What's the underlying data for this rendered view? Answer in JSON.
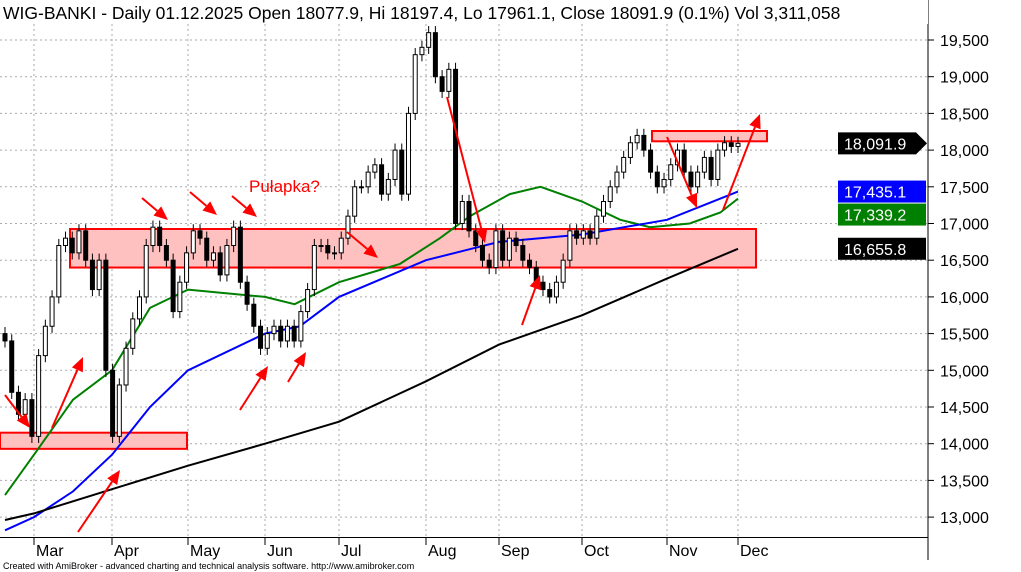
{
  "chart_data": {
    "type": "candlestick",
    "title": "WIG-BANKI - Daily 01.12.2025 Open 18077.9, Hi 18197.4, Lo 17961.1, Close 18091.9 (0.1%) Vol 3,311,058",
    "symbol": "WIG-BANKI",
    "last_bar": {
      "date": "01.12.2025",
      "open": 18077.9,
      "high": 18197.4,
      "low": 17961.1,
      "close": 18091.9,
      "change_pct": "0.1%",
      "volume": "3,311,058"
    },
    "x_ticks": [
      "Mar",
      "Apr",
      "May",
      "Jun",
      "Jul",
      "Aug",
      "Sep",
      "Oct",
      "Nov",
      "Dec"
    ],
    "y_ticks": [
      "19,500",
      "19,000",
      "18,500",
      "18,000",
      "17,500",
      "17,000",
      "16,500",
      "16,000",
      "15,500",
      "15,000",
      "14,500",
      "14,000",
      "13,500",
      "13,000"
    ],
    "y_tick_values": [
      19500,
      19000,
      18500,
      18000,
      17500,
      17000,
      16500,
      16000,
      15500,
      15000,
      14500,
      14000,
      13500,
      13000
    ],
    "ylim": [
      12700,
      19800
    ],
    "grid": true,
    "closes": [
      15400,
      14700,
      14400,
      14600,
      14100,
      15200,
      15600,
      16000,
      16700,
      16800,
      16600,
      16900,
      16500,
      16100,
      16500,
      15000,
      14100,
      14800,
      15300,
      15700,
      16000,
      16700,
      16950,
      16700,
      16500,
      15800,
      16200,
      16600,
      16900,
      16800,
      16500,
      16600,
      16300,
      16700,
      16950,
      16200,
      15900,
      15600,
      15300,
      15500,
      15600,
      15400,
      15600,
      15400,
      15800,
      16100,
      16700,
      16700,
      16600,
      16600,
      16800,
      17100,
      17500,
      17500,
      17700,
      17800,
      17400,
      17600,
      18000,
      17400,
      18500,
      19300,
      19400,
      19600,
      19000,
      18800,
      19100,
      17000,
      17300,
      16900,
      16700,
      16500,
      16400,
      16900,
      16500,
      16800,
      16700,
      16500,
      16400,
      16200,
      16100,
      16000,
      16200,
      16500,
      16900,
      16800,
      16900,
      16800,
      17100,
      17300,
      17500,
      17700,
      17900,
      18100,
      18200,
      18000,
      17700,
      17500,
      17600,
      17800,
      18000,
      17700,
      17500,
      17700,
      17900,
      17600,
      18000,
      18100,
      18050,
      18091.9
    ],
    "moving_averages": [
      {
        "color": "#008000",
        "last": "17,339.2",
        "points": [
          [
            2.63,
            13300
          ],
          [
            3.0,
            13850
          ],
          [
            3.5,
            14600
          ],
          [
            4.0,
            15000
          ],
          [
            4.5,
            15850
          ],
          [
            5.0,
            16100
          ],
          [
            6.0,
            16000
          ],
          [
            6.4,
            15900
          ],
          [
            7.0,
            16200
          ],
          [
            7.7,
            16450
          ],
          [
            8.19,
            16800
          ],
          [
            8.6,
            17100
          ],
          [
            9.13,
            17400
          ],
          [
            9.5,
            17500
          ],
          [
            10.0,
            17300
          ],
          [
            10.45,
            17050
          ],
          [
            10.8,
            16950
          ],
          [
            11.32,
            17000
          ],
          [
            11.75,
            17150
          ],
          [
            12.0,
            17339.2
          ]
        ]
      },
      {
        "color": "#0000ff",
        "last": "17,435.1",
        "points": [
          [
            2.63,
            12820
          ],
          [
            3.0,
            13000
          ],
          [
            3.5,
            13350
          ],
          [
            4.0,
            13850
          ],
          [
            4.5,
            14500
          ],
          [
            5.0,
            15000
          ],
          [
            6.0,
            15500
          ],
          [
            6.47,
            15600
          ],
          [
            7.0,
            16000
          ],
          [
            7.7,
            16350
          ],
          [
            8.0,
            16500
          ],
          [
            8.6,
            16650
          ],
          [
            9.0,
            16750
          ],
          [
            10.0,
            16850
          ],
          [
            11.0,
            17050
          ],
          [
            12.0,
            17435.1
          ]
        ]
      },
      {
        "color": "#000000",
        "last": "16,655.8",
        "points": [
          [
            2.63,
            12960
          ],
          [
            3.0,
            13050
          ],
          [
            4.0,
            13380
          ],
          [
            5.0,
            13700
          ],
          [
            6.0,
            14000
          ],
          [
            7.0,
            14300
          ],
          [
            8.0,
            14850
          ],
          [
            9.0,
            15350
          ],
          [
            10.0,
            15750
          ],
          [
            11.0,
            16250
          ],
          [
            12.0,
            16655.8
          ]
        ]
      }
    ],
    "last_close_tag": "18,091.9",
    "zones": [
      [
        13930,
        14150
      ],
      [
        16400,
        16925
      ],
      [
        18120,
        18260
      ]
    ],
    "annotation_text": "Pułapka?",
    "annotation_color": "#ff0000"
  },
  "footer": "Created with AmiBroker - advanced charting and technical analysis software. http://www.amibroker.com"
}
